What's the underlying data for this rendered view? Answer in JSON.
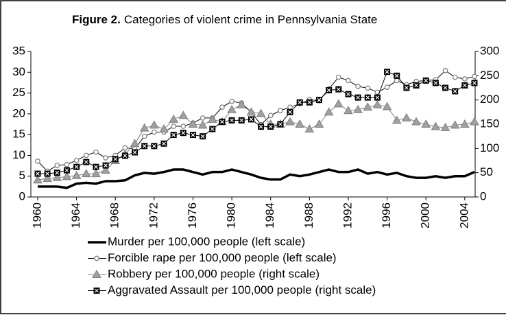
{
  "chart_data": {
    "type": "line",
    "title_label": "Figure 2.",
    "title": "Categories of violent crime in Pennsylvania  State",
    "x": [
      1960,
      1961,
      1962,
      1963,
      1964,
      1965,
      1966,
      1967,
      1968,
      1969,
      1970,
      1971,
      1972,
      1973,
      1974,
      1975,
      1976,
      1977,
      1978,
      1979,
      1980,
      1981,
      1982,
      1983,
      1984,
      1985,
      1986,
      1987,
      1988,
      1989,
      1990,
      1991,
      1992,
      1993,
      1994,
      1995,
      1996,
      1997,
      1998,
      1999,
      2000,
      2001,
      2002,
      2003,
      2004,
      2005
    ],
    "xlim": [
      1960,
      2005
    ],
    "xticks": [
      1960,
      1964,
      1968,
      1972,
      1976,
      1980,
      1984,
      1988,
      1992,
      1996,
      2000,
      2004
    ],
    "ylim": [
      0,
      35
    ],
    "yticks": [
      0,
      5,
      10,
      15,
      20,
      25,
      30,
      35
    ],
    "y2lim": [
      0,
      300
    ],
    "y2ticks": [
      0,
      50,
      100,
      150,
      200,
      250,
      300
    ],
    "grid": false,
    "legend": "bottom",
    "series": [
      {
        "name": "Murder per 100,000 people (left scale)",
        "color": "#000000",
        "marker": "none",
        "axis": "y",
        "values": [
          2.5,
          2.5,
          2.5,
          2.2,
          3.2,
          3.4,
          3.2,
          3.8,
          3.8,
          4.0,
          5.2,
          5.8,
          5.6,
          6.0,
          6.6,
          6.6,
          6.0,
          5.4,
          6.0,
          6.0,
          6.6,
          6.0,
          5.4,
          4.6,
          4.2,
          4.2,
          5.4,
          5.0,
          5.4,
          6.0,
          6.6,
          6.0,
          6.0,
          6.6,
          5.6,
          6.0,
          5.4,
          5.8,
          5.0,
          4.6,
          4.6,
          5.0,
          4.6,
          5.0,
          5.0,
          6.0
        ]
      },
      {
        "name": "Forcible rape per 100,000 people (left scale)",
        "color": "#000000",
        "marker": "circle",
        "axis": "y",
        "values": [
          8.6,
          6.2,
          7.6,
          7.8,
          8.8,
          10.0,
          10.8,
          9.4,
          10.0,
          11.8,
          11.6,
          14.6,
          15.6,
          15.6,
          17.0,
          17.0,
          17.8,
          19.0,
          19.0,
          21.6,
          23.0,
          22.6,
          20.4,
          17.4,
          19.6,
          20.8,
          21.6,
          22.4,
          23.4,
          23.2,
          26.0,
          28.8,
          28.0,
          26.6,
          26.2,
          25.2,
          26.4,
          28.0,
          27.0,
          27.8,
          28.0,
          28.2,
          30.4,
          28.8,
          28.4,
          29.0
        ]
      },
      {
        "name": "Robbery per 100,000 people (right scale)",
        "color": "#808080",
        "marker": "triangle",
        "axis": "y2",
        "values": [
          35,
          38,
          40,
          42,
          44,
          48,
          48,
          55,
          75,
          88,
          110,
          142,
          148,
          140,
          160,
          168,
          150,
          148,
          160,
          155,
          180,
          190,
          175,
          172,
          150,
          150,
          155,
          150,
          140,
          150,
          175,
          192,
          178,
          180,
          185,
          190,
          186,
          158,
          163,
          155,
          150,
          145,
          143,
          148,
          150,
          155
        ]
      },
      {
        "name": "Aggravated Assault per 100,000 people (right scale)",
        "color": "#000000",
        "marker": "square",
        "axis": "y2",
        "values": [
          48,
          48,
          50,
          55,
          62,
          72,
          62,
          65,
          78,
          85,
          92,
          105,
          105,
          110,
          128,
          132,
          128,
          125,
          140,
          155,
          158,
          158,
          160,
          145,
          145,
          150,
          175,
          195,
          195,
          200,
          220,
          222,
          212,
          205,
          205,
          205,
          258,
          250,
          225,
          230,
          240,
          235,
          225,
          218,
          230,
          235
        ]
      }
    ]
  }
}
